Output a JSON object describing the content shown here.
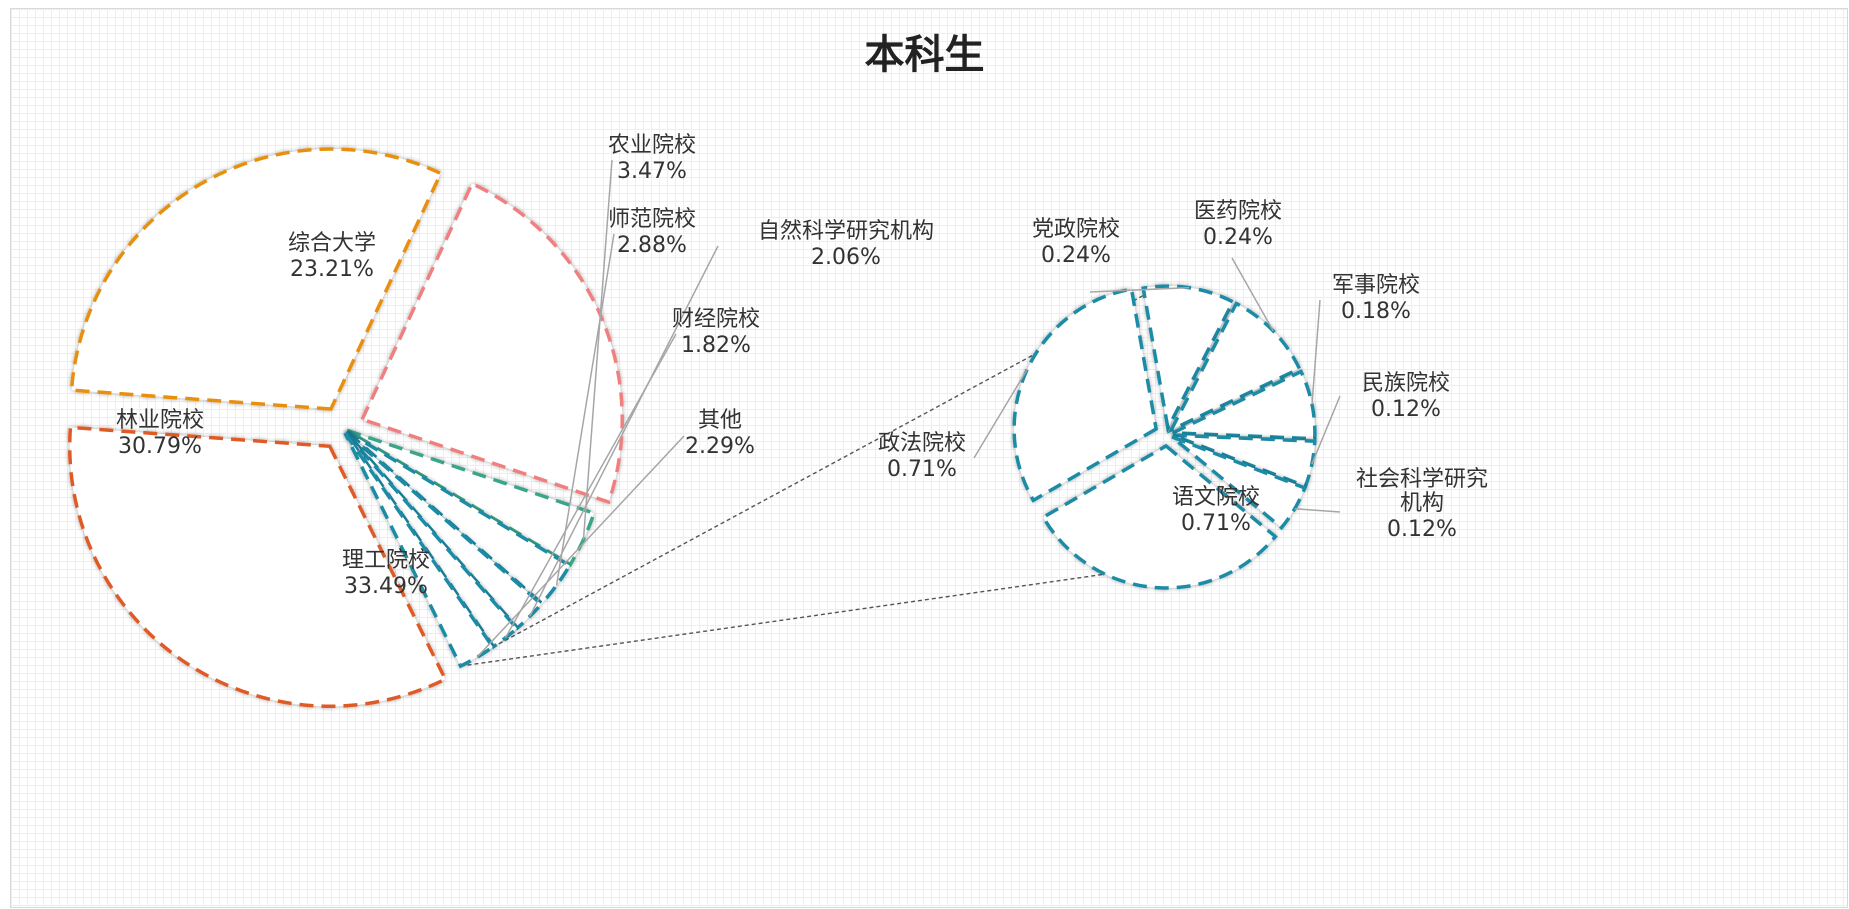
{
  "chart_data": {
    "type": "bar-of-pie",
    "title": "本科生",
    "main_pie": [
      {
        "name": "综合大学",
        "value": 23.21,
        "label": "23.21%",
        "color": "#f08080"
      },
      {
        "name": "农业院校",
        "value": 3.47,
        "label": "3.47%",
        "color": "#3aa58a"
      },
      {
        "name": "师范院校",
        "value": 2.88,
        "label": "2.88%",
        "color": "#1a8ba6"
      },
      {
        "name": "自然科学研究机构",
        "value": 2.06,
        "label": "2.06%",
        "color": "#1a8ba6"
      },
      {
        "name": "财经院校",
        "value": 1.82,
        "label": "1.82%",
        "color": "#1a8ba6"
      },
      {
        "name": "其他",
        "value": 2.29,
        "label": "2.29%",
        "color": "#1a8ba6"
      },
      {
        "name": "理工院校",
        "value": 33.49,
        "label": "33.49%",
        "color": "#e05a28"
      },
      {
        "name": "林业院校",
        "value": 30.79,
        "label": "30.79%",
        "color": "#e8900f"
      }
    ],
    "secondary_pie": [
      {
        "name": "党政院校",
        "value": 0.24,
        "label": "0.24%",
        "color": "#1a8ba6"
      },
      {
        "name": "医药院校",
        "value": 0.24,
        "label": "0.24%",
        "color": "#1a8ba6"
      },
      {
        "name": "军事院校",
        "value": 0.18,
        "label": "0.18%",
        "color": "#1a8ba6"
      },
      {
        "name": "民族院校",
        "value": 0.12,
        "label": "0.12%",
        "color": "#1a8ba6"
      },
      {
        "name": "社会科学研究机构",
        "value": 0.12,
        "label": "0.12%",
        "color": "#1a8ba6"
      },
      {
        "name": "语文院校",
        "value": 0.71,
        "label": "0.71%",
        "color": "#1a8ba6"
      },
      {
        "name": "政法院校",
        "value": 0.71,
        "label": "0.71%",
        "color": "#1a8ba6"
      }
    ],
    "exploded_slice": "其他"
  }
}
